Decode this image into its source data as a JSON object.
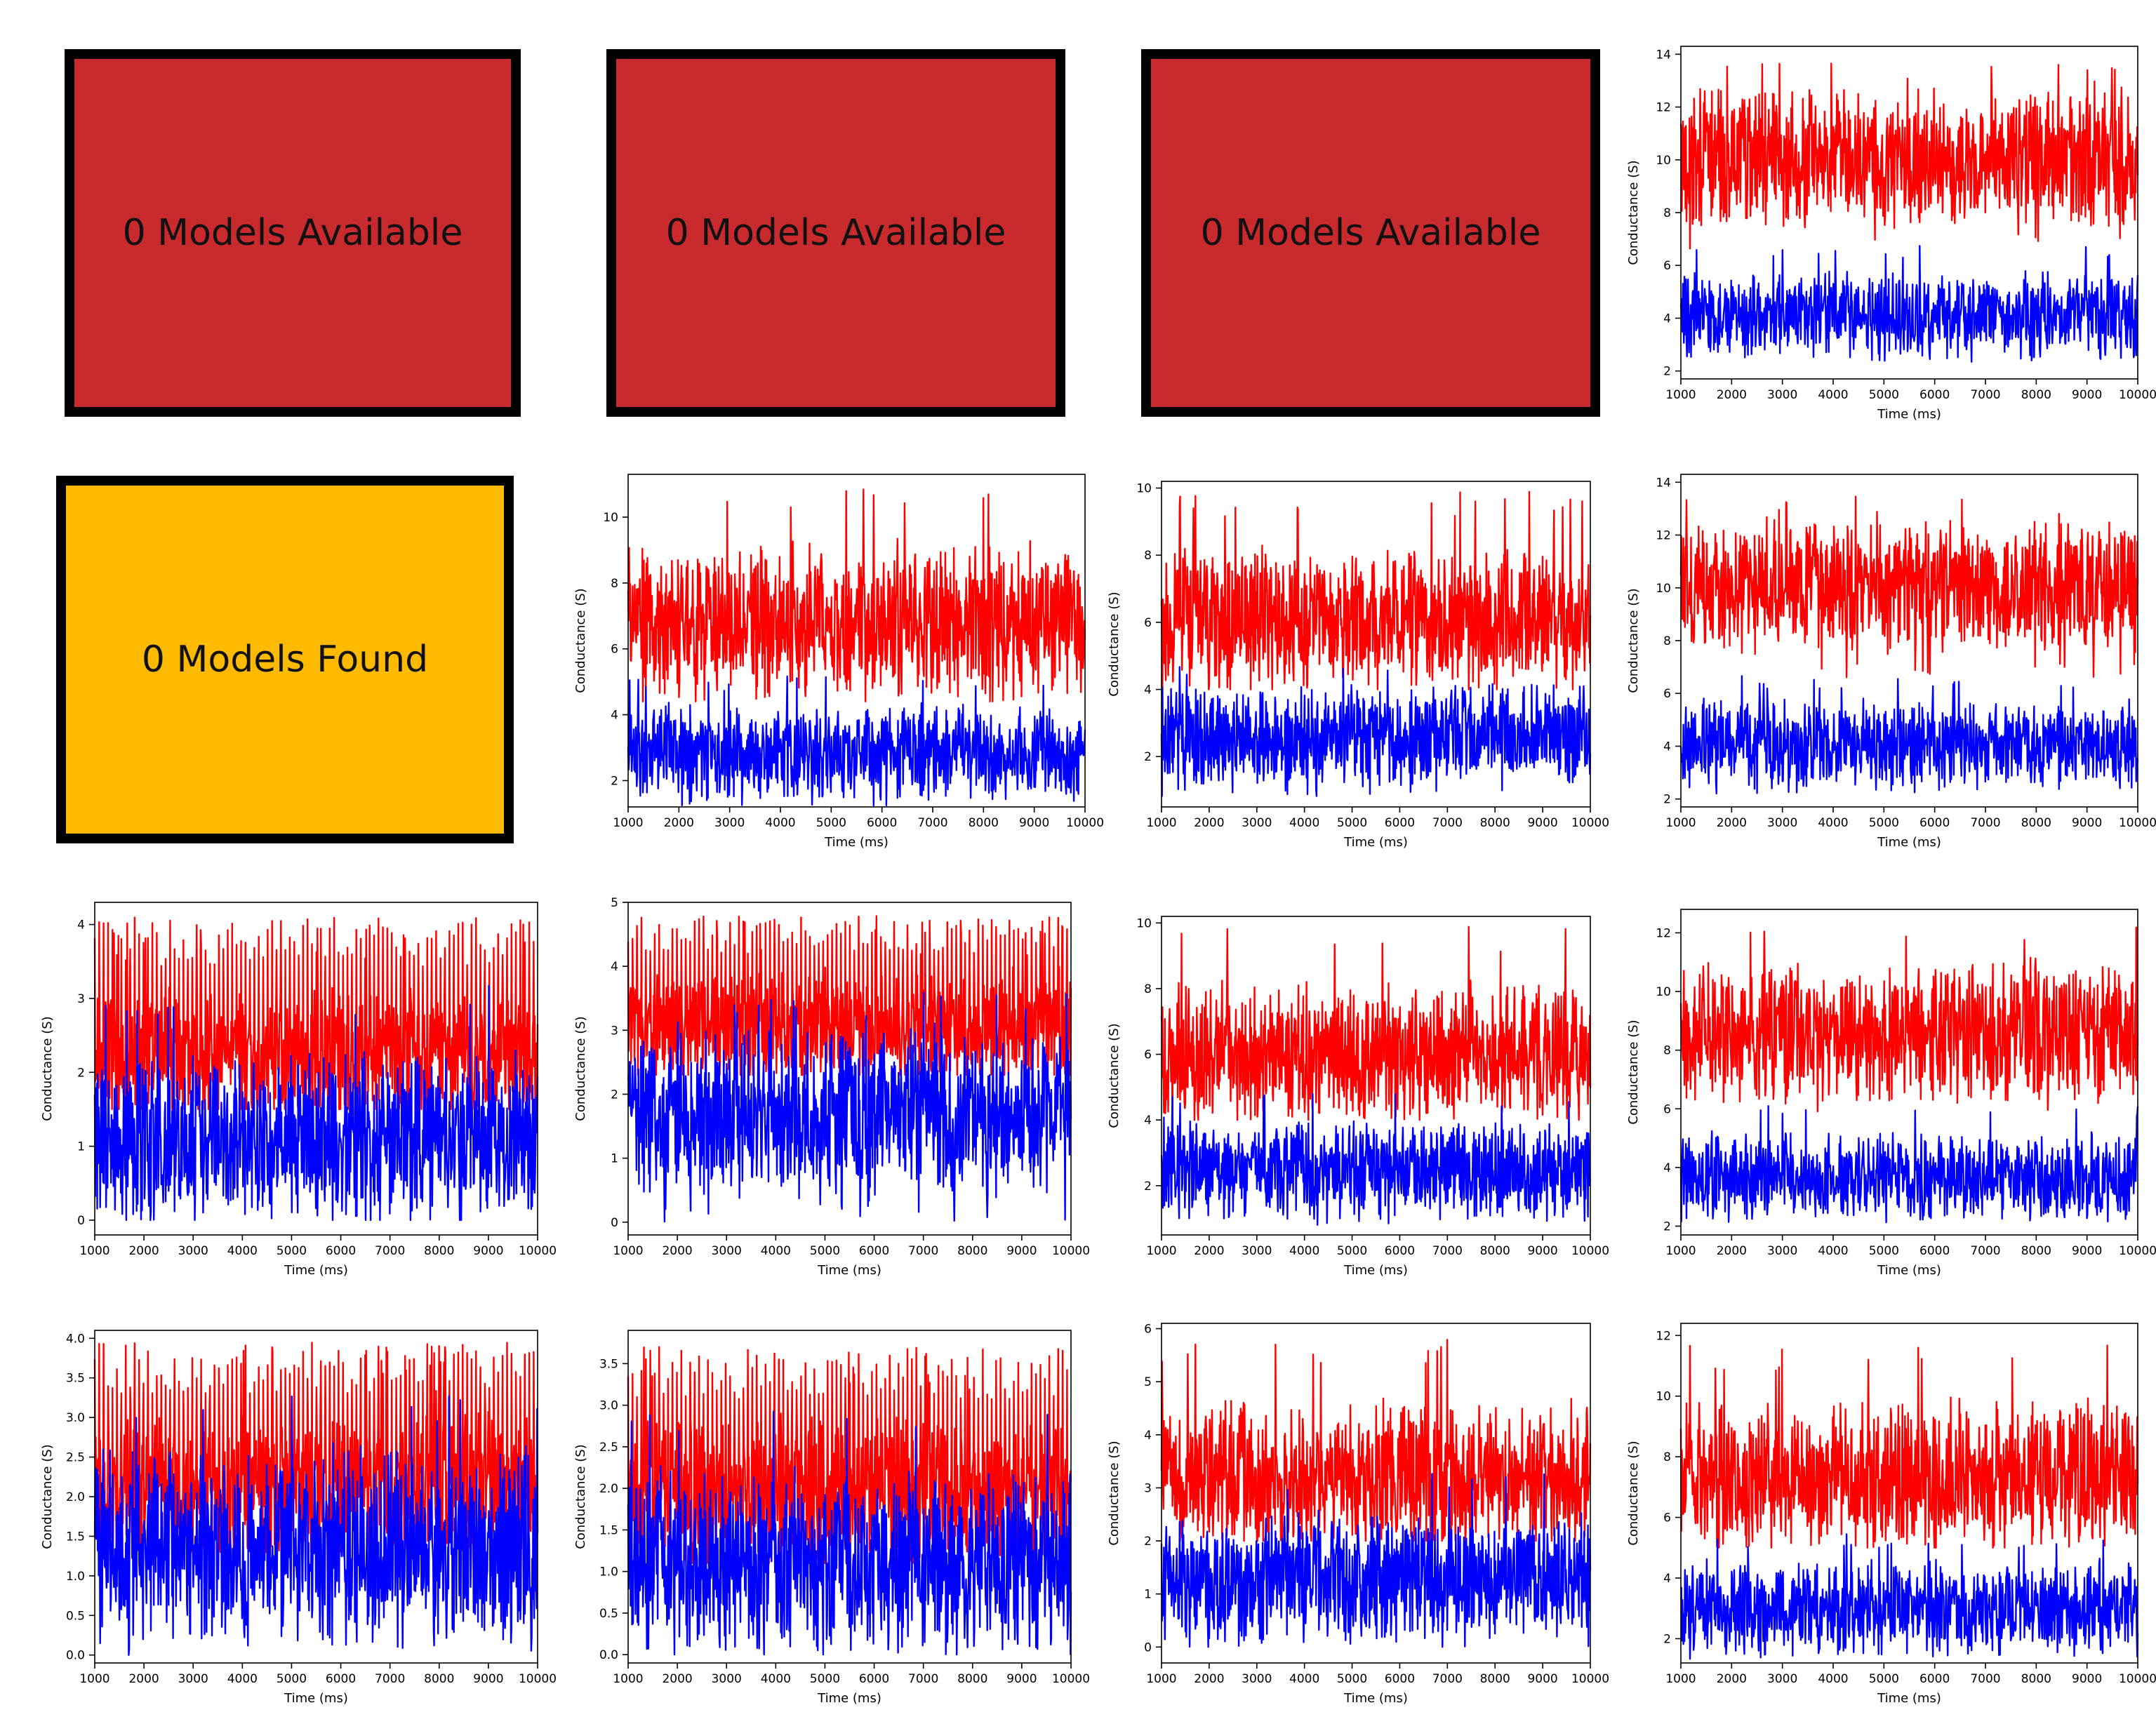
{
  "colors": {
    "unavailable": "#C92A2E",
    "not_found": "#FDBA00",
    "series_red": "#FF0000",
    "series_blue": "#0000FF"
  },
  "status_boxes": [
    {
      "label": "0 Models Available",
      "color": "unavailable"
    },
    {
      "label": "0 Models Available",
      "color": "unavailable"
    },
    {
      "label": "0 Models Available",
      "color": "unavailable"
    },
    {
      "label": "0 Models Found",
      "color": "not_found"
    }
  ],
  "chart_data": [
    {
      "type": "line",
      "xlabel": "Time (ms)",
      "ylabel": "Conductance (S)",
      "xlim": [
        1000,
        10000
      ],
      "xticks": [
        1000,
        2000,
        3000,
        4000,
        5000,
        6000,
        7000,
        8000,
        9000,
        10000
      ],
      "ylim": [
        1.7,
        14.3
      ],
      "yticks": [
        2,
        4,
        6,
        8,
        10,
        12,
        14
      ],
      "ytick_labels": [
        "2",
        "4",
        "6",
        "8",
        "10",
        "12",
        "14"
      ],
      "series": [
        {
          "color": "series_red",
          "mean": 10.0,
          "min": 6.5,
          "max": 13.7,
          "spike_every": 0
        },
        {
          "color": "series_blue",
          "mean": 4.1,
          "min": 2.3,
          "max": 6.8,
          "spike_every": 0
        }
      ]
    },
    {
      "type": "line",
      "xlabel": "Time (ms)",
      "ylabel": "Conductance (S)",
      "xlim": [
        1000,
        10000
      ],
      "xticks": [
        1000,
        2000,
        3000,
        4000,
        5000,
        6000,
        7000,
        8000,
        9000,
        10000
      ],
      "ylim": [
        1.2,
        11.3
      ],
      "yticks": [
        2,
        4,
        6,
        8,
        10
      ],
      "ytick_labels": [
        "2",
        "4",
        "6",
        "8",
        "10"
      ],
      "series": [
        {
          "color": "series_red",
          "mean": 6.8,
          "min": 4.4,
          "max": 10.9,
          "spike_every": 0
        },
        {
          "color": "series_blue",
          "mean": 2.8,
          "min": 1.2,
          "max": 5.2,
          "spike_every": 0
        }
      ]
    },
    {
      "type": "line",
      "xlabel": "Time (ms)",
      "ylabel": "Conductance (S)",
      "xlim": [
        1000,
        10000
      ],
      "xticks": [
        1000,
        2000,
        3000,
        4000,
        5000,
        6000,
        7000,
        8000,
        9000,
        10000
      ],
      "ylim": [
        0.5,
        10.2
      ],
      "yticks": [
        2,
        4,
        6,
        8,
        10
      ],
      "ytick_labels": [
        "2",
        "4",
        "6",
        "8",
        "10"
      ],
      "series": [
        {
          "color": "series_red",
          "mean": 6.0,
          "min": 4.0,
          "max": 9.9,
          "spike_every": 0
        },
        {
          "color": "series_blue",
          "mean": 2.6,
          "min": 0.7,
          "max": 4.8,
          "spike_every": 0
        }
      ]
    },
    {
      "type": "line",
      "xlabel": "Time (ms)",
      "ylabel": "Conductance (S)",
      "xlim": [
        1000,
        10000
      ],
      "xticks": [
        1000,
        2000,
        3000,
        4000,
        5000,
        6000,
        7000,
        8000,
        9000,
        10000
      ],
      "ylim": [
        1.7,
        14.3
      ],
      "yticks": [
        2,
        4,
        6,
        8,
        10,
        12,
        14
      ],
      "ytick_labels": [
        "2",
        "4",
        "6",
        "8",
        "10",
        "12",
        "14"
      ],
      "series": [
        {
          "color": "series_red",
          "mean": 10.0,
          "min": 6.5,
          "max": 13.6,
          "spike_every": 0
        },
        {
          "color": "series_blue",
          "mean": 4.1,
          "min": 2.2,
          "max": 6.7,
          "spike_every": 0
        }
      ]
    },
    {
      "type": "line",
      "xlabel": "Time (ms)",
      "ylabel": "Conductance (S)",
      "xlim": [
        1000,
        10000
      ],
      "xticks": [
        1000,
        2000,
        3000,
        4000,
        5000,
        6000,
        7000,
        8000,
        9000,
        10000
      ],
      "ylim": [
        -0.2,
        4.3
      ],
      "yticks": [
        0,
        1,
        2,
        3,
        4
      ],
      "ytick_labels": [
        "0",
        "1",
        "2",
        "3",
        "4"
      ],
      "series": [
        {
          "color": "series_red",
          "mean": 2.2,
          "min": 1.5,
          "max": 4.1,
          "spike_every": 9
        },
        {
          "color": "series_blue",
          "mean": 1.1,
          "min": 0.0,
          "max": 3.2,
          "spike_every": 0
        }
      ]
    },
    {
      "type": "line",
      "xlabel": "Time (ms)",
      "ylabel": "Conductance (S)",
      "xlim": [
        1000,
        10000
      ],
      "xticks": [
        1000,
        2000,
        3000,
        4000,
        5000,
        6000,
        7000,
        8000,
        9000,
        10000
      ],
      "ylim": [
        -0.2,
        5.0
      ],
      "yticks": [
        0,
        1,
        2,
        3,
        4,
        5
      ],
      "ytick_labels": [
        "0",
        "1",
        "2",
        "3",
        "4",
        "5"
      ],
      "series": [
        {
          "color": "series_red",
          "mean": 3.0,
          "min": 2.3,
          "max": 4.8,
          "spike_every": 9
        },
        {
          "color": "series_blue",
          "mean": 1.7,
          "min": 0.0,
          "max": 3.6,
          "spike_every": 0
        }
      ]
    },
    {
      "type": "line",
      "xlabel": "Time (ms)",
      "ylabel": "Conductance (S)",
      "xlim": [
        1000,
        10000
      ],
      "xticks": [
        1000,
        2000,
        3000,
        4000,
        5000,
        6000,
        7000,
        8000,
        9000,
        10000
      ],
      "ylim": [
        0.5,
        10.2
      ],
      "yticks": [
        2,
        4,
        6,
        8,
        10
      ],
      "ytick_labels": [
        "2",
        "4",
        "6",
        "8",
        "10"
      ],
      "series": [
        {
          "color": "series_red",
          "mean": 6.0,
          "min": 4.0,
          "max": 9.9,
          "spike_every": 0
        },
        {
          "color": "series_blue",
          "mean": 2.5,
          "min": 0.8,
          "max": 4.8,
          "spike_every": 0
        }
      ]
    },
    {
      "type": "line",
      "xlabel": "Time (ms)",
      "ylabel": "Conductance (S)",
      "xlim": [
        1000,
        10000
      ],
      "xticks": [
        1000,
        2000,
        3000,
        4000,
        5000,
        6000,
        7000,
        8000,
        9000,
        10000
      ],
      "ylim": [
        1.7,
        12.8
      ],
      "yticks": [
        2,
        4,
        6,
        8,
        10,
        12
      ],
      "ytick_labels": [
        "2",
        "4",
        "6",
        "8",
        "10",
        "12"
      ],
      "series": [
        {
          "color": "series_red",
          "mean": 8.6,
          "min": 5.8,
          "max": 12.3,
          "spike_every": 0
        },
        {
          "color": "series_blue",
          "mean": 3.7,
          "min": 2.1,
          "max": 6.1,
          "spike_every": 0
        }
      ]
    },
    {
      "type": "line",
      "xlabel": "Time (ms)",
      "ylabel": "Conductance (S)",
      "xlim": [
        1000,
        10000
      ],
      "xticks": [
        1000,
        2000,
        3000,
        4000,
        5000,
        6000,
        7000,
        8000,
        9000,
        10000
      ],
      "ylim": [
        -0.1,
        4.1
      ],
      "yticks": [
        0,
        0.5,
        1,
        1.5,
        2,
        2.5,
        3,
        3.5,
        4
      ],
      "ytick_labels": [
        "0.0",
        "0.5",
        "1.0",
        "1.5",
        "2.0",
        "2.5",
        "3.0",
        "3.5",
        "4.0"
      ],
      "series": [
        {
          "color": "series_red",
          "mean": 2.1,
          "min": 1.3,
          "max": 3.95,
          "spike_every": 9
        },
        {
          "color": "series_blue",
          "mean": 1.4,
          "min": 0.0,
          "max": 3.3,
          "spike_every": 0
        }
      ]
    },
    {
      "type": "line",
      "xlabel": "Time (ms)",
      "ylabel": "Conductance (S)",
      "xlim": [
        1000,
        10000
      ],
      "xticks": [
        1000,
        2000,
        3000,
        4000,
        5000,
        6000,
        7000,
        8000,
        9000,
        10000
      ],
      "ylim": [
        -0.1,
        3.9
      ],
      "yticks": [
        0,
        0.5,
        1,
        1.5,
        2,
        2.5,
        3,
        3.5
      ],
      "ytick_labels": [
        "0.0",
        "0.5",
        "1.0",
        "1.5",
        "2.0",
        "2.5",
        "3.0",
        "3.5"
      ],
      "series": [
        {
          "color": "series_red",
          "mean": 1.9,
          "min": 1.1,
          "max": 3.7,
          "spike_every": 9
        },
        {
          "color": "series_blue",
          "mean": 1.1,
          "min": 0.0,
          "max": 3.0,
          "spike_every": 0
        }
      ]
    },
    {
      "type": "line",
      "xlabel": "Time (ms)",
      "ylabel": "Conductance (S)",
      "xlim": [
        1000,
        10000
      ],
      "xticks": [
        1000,
        2000,
        3000,
        4000,
        5000,
        6000,
        7000,
        8000,
        9000,
        10000
      ],
      "ylim": [
        -0.3,
        6.1
      ],
      "yticks": [
        0,
        1,
        2,
        3,
        4,
        5,
        6
      ],
      "ytick_labels": [
        "0",
        "1",
        "2",
        "3",
        "4",
        "5",
        "6"
      ],
      "series": [
        {
          "color": "series_red",
          "mean": 3.2,
          "min": 2.0,
          "max": 5.8,
          "spike_every": 0
        },
        {
          "color": "series_blue",
          "mean": 1.3,
          "min": 0.0,
          "max": 3.3,
          "spike_every": 0
        }
      ]
    },
    {
      "type": "line",
      "xlabel": "Time (ms)",
      "ylabel": "Conductance (S)",
      "xlim": [
        1000,
        10000
      ],
      "xticks": [
        1000,
        2000,
        3000,
        4000,
        5000,
        6000,
        7000,
        8000,
        9000,
        10000
      ],
      "ylim": [
        1.2,
        12.4
      ],
      "yticks": [
        2,
        4,
        6,
        8,
        10,
        12
      ],
      "ytick_labels": [
        "2",
        "4",
        "6",
        "8",
        "10",
        "12"
      ],
      "series": [
        {
          "color": "series_red",
          "mean": 7.3,
          "min": 5.0,
          "max": 11.7,
          "spike_every": 0
        },
        {
          "color": "series_blue",
          "mean": 3.0,
          "min": 1.3,
          "max": 5.5,
          "spike_every": 0
        }
      ]
    }
  ]
}
